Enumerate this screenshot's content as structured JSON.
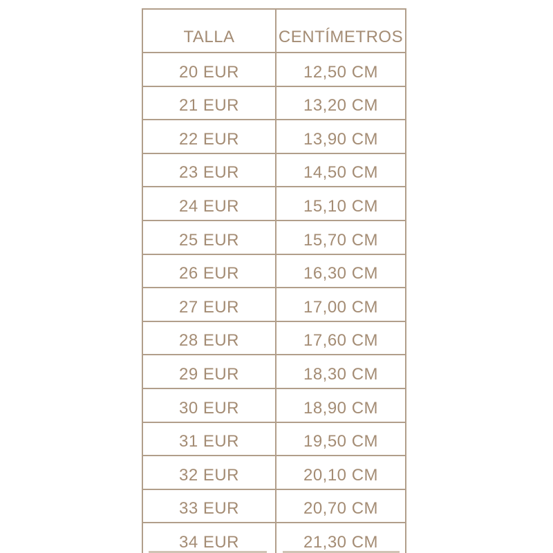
{
  "table": {
    "columns": [
      "TALLA",
      "CENTÍMETROS"
    ],
    "rows": [
      {
        "talla": "20 EUR",
        "cm": "12,50 CM"
      },
      {
        "talla": "21 EUR",
        "cm": "13,20 CM"
      },
      {
        "talla": "22 EUR",
        "cm": "13,90 CM"
      },
      {
        "talla": "23 EUR",
        "cm": "14,50 CM"
      },
      {
        "talla": "24 EUR",
        "cm": "15,10 CM"
      },
      {
        "talla": "25 EUR",
        "cm": "15,70 CM"
      },
      {
        "talla": "26 EUR",
        "cm": "16,30 CM"
      },
      {
        "talla": "27 EUR",
        "cm": "17,00 CM"
      },
      {
        "talla": "28 EUR",
        "cm": "17,60 CM"
      },
      {
        "talla": "29 EUR",
        "cm": "18,30 CM"
      },
      {
        "talla": "30 EUR",
        "cm": "18,90 CM"
      },
      {
        "talla": "31 EUR",
        "cm": "19,50 CM"
      },
      {
        "talla": "32 EUR",
        "cm": "20,10 CM"
      },
      {
        "talla": "33 EUR",
        "cm": "20,70 CM"
      },
      {
        "talla": "34 EUR",
        "cm": "21,30 CM"
      }
    ]
  },
  "colors": {
    "border": "#b19e8a",
    "text": "#a48c74",
    "background": "#ffffff",
    "cropped_edge": "#cfc3b4"
  }
}
